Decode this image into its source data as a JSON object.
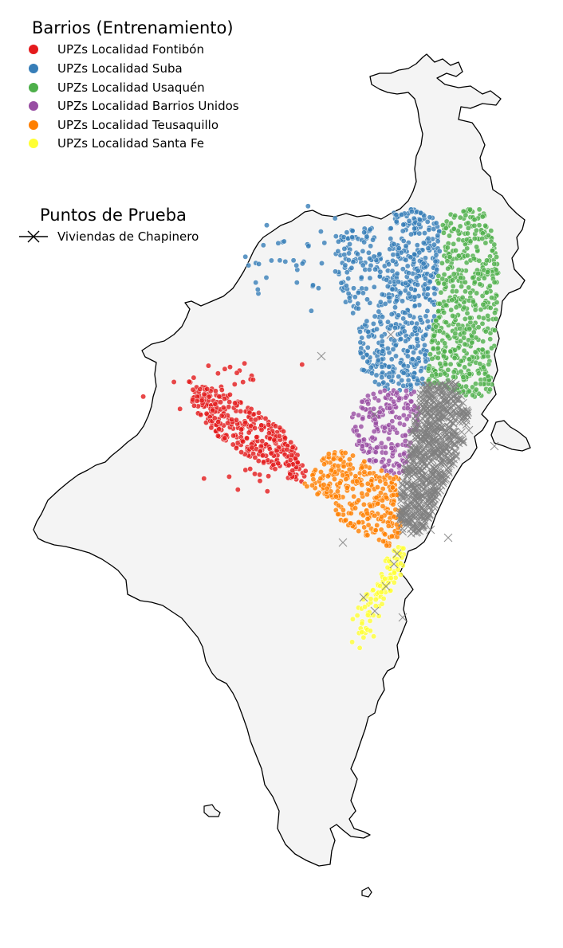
{
  "legend_training": {
    "title": "Barrios (Entrenamiento)",
    "items": [
      {
        "label": "UPZs Localidad Fontibón",
        "color": "#e41a1c"
      },
      {
        "label": "UPZs Localidad Suba",
        "color": "#377eb8"
      },
      {
        "label": "UPZs Localidad Usaquén",
        "color": "#4daf4a"
      },
      {
        "label": "UPZs Localidad Barrios Unidos",
        "color": "#984ea3"
      },
      {
        "label": "UPZs Localidad Teusaquillo",
        "color": "#ff7f00"
      },
      {
        "label": "UPZs Localidad Santa Fe",
        "color": "#ffff33"
      }
    ]
  },
  "legend_test": {
    "title": "Puntos de Prueba",
    "items": [
      {
        "label": "Viviendas de Chapinero",
        "color": "#808080",
        "marker": "x-marker-icon"
      }
    ]
  },
  "map": {
    "region_fill": "#f4f4f4",
    "border_color": "#000000"
  }
}
